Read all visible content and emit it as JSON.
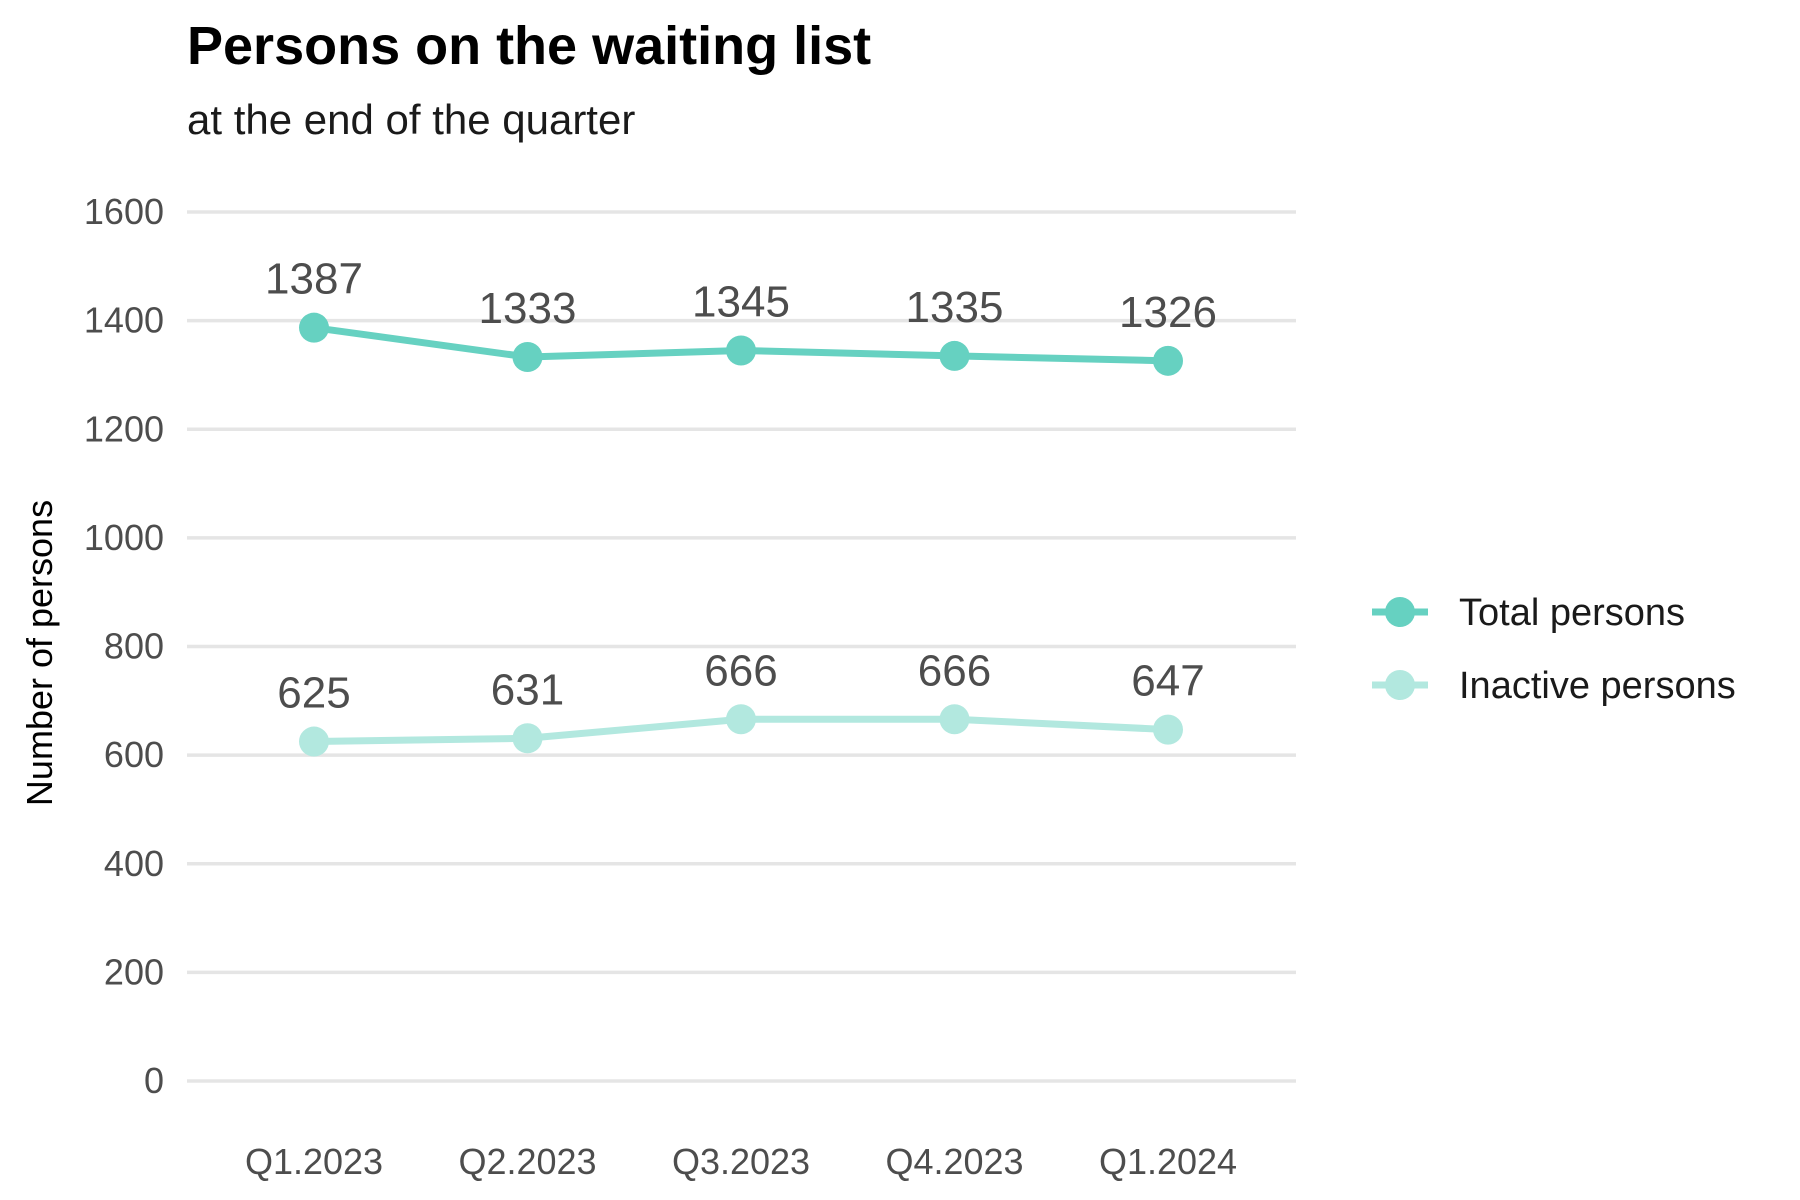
{
  "chart_data": {
    "type": "line",
    "title": "Persons on the waiting list",
    "subtitle": "at the end of the quarter",
    "xlabel": "",
    "ylabel": "Number of persons",
    "ylim": [
      0,
      1600
    ],
    "yticks": [
      0,
      200,
      400,
      600,
      800,
      1000,
      1200,
      1400,
      1600
    ],
    "grid": true,
    "legend_position": "right",
    "categories": [
      "Q1.2023",
      "Q2.2023",
      "Q3.2023",
      "Q4.2023",
      "Q1.2024"
    ],
    "series": [
      {
        "name": "Total persons",
        "values": [
          1387,
          1333,
          1345,
          1335,
          1326
        ],
        "color": "#66d1c1"
      },
      {
        "name": "Inactive persons",
        "values": [
          625,
          631,
          666,
          666,
          647
        ],
        "color": "#b2e8df"
      }
    ]
  }
}
